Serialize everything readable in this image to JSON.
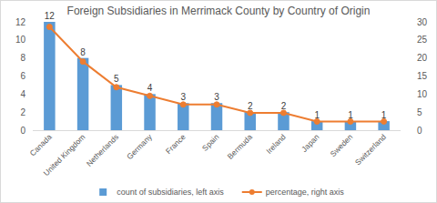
{
  "chart_data": {
    "type": "bar",
    "title": "Foreign Subsidiaries in Merrimack County by Country of Origin",
    "categories": [
      "Canada",
      "United Kingdom",
      "Netherlands",
      "Germany",
      "France",
      "Spain",
      "Bermuda",
      "Ireland",
      "Japan",
      "Sweden",
      "Switzerland"
    ],
    "series": [
      {
        "name": "count of subsidiaries, left axis",
        "type": "bar",
        "color": "#5b9bd5",
        "data_labels": true,
        "values": [
          12,
          8,
          5,
          4,
          3,
          3,
          2,
          2,
          1,
          1,
          1
        ]
      },
      {
        "name": "percentage, right axis",
        "type": "line",
        "color": "#ed7d31",
        "marker": "circle",
        "line_style": "solid",
        "axis": "y2",
        "values": [
          28.6,
          19.0,
          11.9,
          9.5,
          7.1,
          7.1,
          4.8,
          4.8,
          2.4,
          2.4,
          2.4
        ]
      }
    ],
    "ylim": [
      0,
      12
    ],
    "yticks": [
      0,
      2,
      4,
      6,
      8,
      10,
      12
    ],
    "y2lim": [
      0,
      30
    ],
    "y2ticks": [
      0,
      5,
      10,
      15,
      20,
      25,
      30
    ],
    "grid": false,
    "legend": "bottom"
  }
}
